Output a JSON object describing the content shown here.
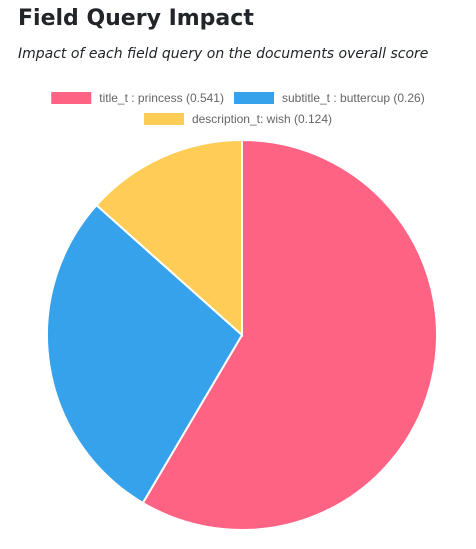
{
  "header": {
    "title": "Field Query Impact",
    "subtitle": "Impact of each field query on the documents overall score"
  },
  "chart_data": {
    "type": "pie",
    "title": "",
    "legend_position": "top",
    "series": [
      {
        "name": "title_t : princess (0.541)",
        "value": 0.541,
        "color": "#ff6384"
      },
      {
        "name": "subtitle_t : buttercup (0.26)",
        "value": 0.26,
        "color": "#36a2eb"
      },
      {
        "name": "description_t: wish (0.124)",
        "value": 0.124,
        "color": "#ffcd56"
      }
    ]
  }
}
